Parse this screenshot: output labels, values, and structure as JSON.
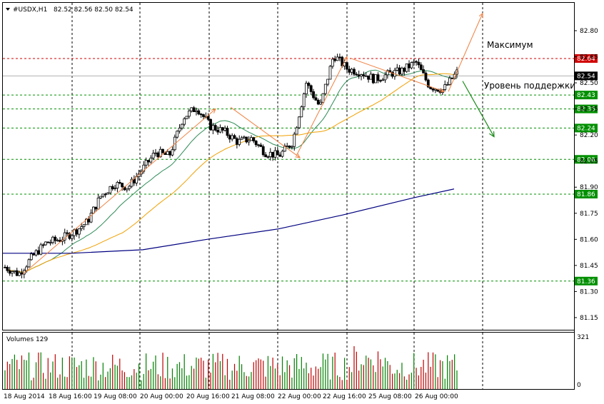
{
  "header": {
    "symbol": "#USDX,H1",
    "ohlc": "82.52 82.56 82.50 82.54"
  },
  "volumes": {
    "title": "Volumes 129",
    "max_label": "321",
    "min_label": "0"
  },
  "annotations": {
    "maximum": "Максимум",
    "support": "Уровень поддержки"
  },
  "colors": {
    "up_candle": "#000000",
    "down_candle": "#008000",
    "red_level": "#d00000",
    "green_level": "#009000",
    "ma_fast": "#2e8b57",
    "ma_mid": "#f0a000",
    "ma_slow": "#000080",
    "arrow_orange": "#f08040",
    "arrow_green": "#1a8a1a",
    "volume_up": "#008000",
    "volume_down": "#c00000"
  },
  "chart_data": {
    "type": "candlestick",
    "price_axis": {
      "range": [
        81.08,
        82.96
      ],
      "ticks": [
        "82.80",
        "82.65",
        "82.50",
        "82.35",
        "82.20",
        "82.05",
        "81.90",
        "81.75",
        "81.60",
        "81.45",
        "81.30",
        "81.15"
      ],
      "tick_values": [
        82.8,
        82.65,
        82.5,
        82.35,
        82.2,
        82.05,
        81.9,
        81.75,
        81.6,
        81.45,
        81.3,
        81.15
      ]
    },
    "current_price": "82.54",
    "levels": [
      {
        "value": 82.64,
        "label": "82.64",
        "kind": "resistance"
      },
      {
        "value": 82.43,
        "label": "82.43",
        "kind": "support"
      },
      {
        "value": 82.35,
        "label": "82.35",
        "kind": "support"
      },
      {
        "value": 82.24,
        "label": "82.24",
        "kind": "support"
      },
      {
        "value": 82.06,
        "label": "82.06",
        "kind": "support"
      },
      {
        "value": 81.86,
        "label": "81.86",
        "kind": "support"
      },
      {
        "value": 81.36,
        "label": "81.36",
        "kind": "support"
      }
    ],
    "time_labels": [
      "18 Aug 2014",
      "18 Aug 16:00",
      "19 Aug 08:00",
      "20 Aug 00:00",
      "20 Aug 16:00",
      "21 Aug 08:00",
      "22 Aug 00:00",
      "22 Aug 16:00",
      "25 Aug 08:00",
      "26 Aug 00:00"
    ],
    "price_path": [
      81.44,
      81.4,
      81.5,
      81.58,
      81.6,
      81.64,
      81.7,
      81.85,
      81.92,
      81.9,
      82.0,
      82.1,
      82.08,
      82.3,
      82.36,
      82.25,
      82.22,
      82.16,
      82.18,
      82.1,
      82.08,
      82.16,
      82.5,
      82.36,
      82.66,
      82.58,
      82.56,
      82.52,
      82.55,
      82.57,
      82.62,
      82.48,
      82.46,
      82.56
    ]
  }
}
